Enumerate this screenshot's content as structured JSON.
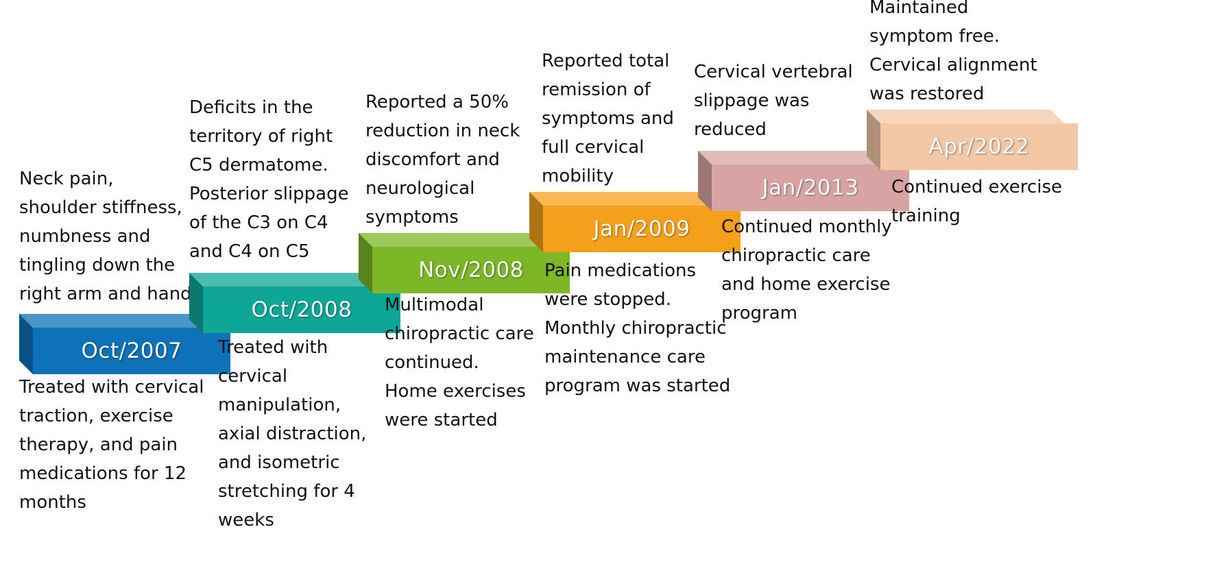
{
  "timeline": [
    {
      "date": "Oct/2007",
      "color": "#0e72b8",
      "above": [
        "Neck pain,",
        "shoulder stiffness,",
        "numbness and",
        "tingling down the",
        "right arm and hand"
      ],
      "below": [
        "Treated with cervical",
        "traction, exercise",
        "therapy, and pain",
        "medications for 12",
        "months"
      ]
    },
    {
      "date": "Oct/2008",
      "color": "#0ea697",
      "above": [
        "Deficits in the",
        "territory of right",
        "C5 dermatome.",
        "Posterior slippage",
        "of the C3 on C4",
        "and C4 on C5"
      ],
      "below": [
        "Treated with",
        "cervical",
        "manipulation,",
        "axial distraction,",
        "and isometric",
        "stretching for 4",
        "weeks"
      ]
    },
    {
      "date": "Nov/2008",
      "color": "#7bb726",
      "above": [
        "Reported a 50%",
        "reduction in neck",
        "discomfort and",
        "neurological",
        "symptoms"
      ],
      "below": [
        "Multimodal",
        "chiropractic care",
        "continued.",
        "Home exercises",
        "were started"
      ]
    },
    {
      "date": "Jan/2009",
      "color": "#f5a01a",
      "above": [
        "Reported total",
        "remission of",
        "symptoms and",
        "full cervical",
        "mobility"
      ],
      "below": [
        "Pain medications",
        "were stopped.",
        "Monthly chiropractic",
        "maintenance care",
        "program was started"
      ]
    },
    {
      "date": "Jan/2013",
      "color": "#d9a3a3",
      "above": [
        "Cervical vertebral",
        "slippage was",
        "reduced"
      ],
      "below": [
        "Continued monthly",
        "chiropractic care",
        "and home exercise",
        "program"
      ]
    },
    {
      "date": "Apr/2022",
      "color": "#f2c8a6",
      "above": [
        "Maintained",
        "symptom free.",
        "Cervical alignment",
        "was restored"
      ],
      "below": [
        "Continued exercise",
        "training"
      ]
    }
  ]
}
